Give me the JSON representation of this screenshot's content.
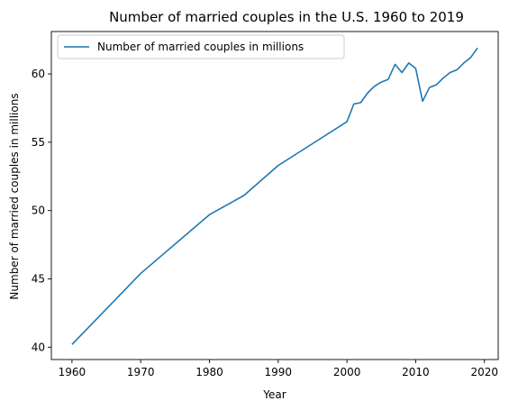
{
  "chart_data": {
    "type": "line",
    "title": "Number of married couples in the U.S. 1960 to 2019",
    "xlabel": "Year",
    "ylabel": "Number of married couples in millions",
    "xlim": [
      1957,
      2022
    ],
    "ylim": [
      39.1,
      63.1
    ],
    "xticks": [
      1960,
      1970,
      1980,
      1990,
      2000,
      2010,
      2020
    ],
    "yticks": [
      40,
      45,
      50,
      55,
      60
    ],
    "grid": false,
    "legend": "top-left",
    "series": [
      {
        "name": "Number of married couples in millions",
        "color": "#1f77b4",
        "x": [
          1960,
          1970,
          1980,
          1985,
          1990,
          1995,
          2000,
          2001,
          2002,
          2003,
          2004,
          2005,
          2006,
          2007,
          2008,
          2009,
          2010,
          2011,
          2012,
          2013,
          2014,
          2015,
          2016,
          2017,
          2018,
          2019
        ],
        "y": [
          40.2,
          45.4,
          49.7,
          51.1,
          53.3,
          54.9,
          56.5,
          57.8,
          57.9,
          58.6,
          59.1,
          59.4,
          59.6,
          60.7,
          60.1,
          60.8,
          60.4,
          58.0,
          59.0,
          59.2,
          59.7,
          60.1,
          60.3,
          60.8,
          61.2,
          61.9
        ]
      }
    ]
  }
}
